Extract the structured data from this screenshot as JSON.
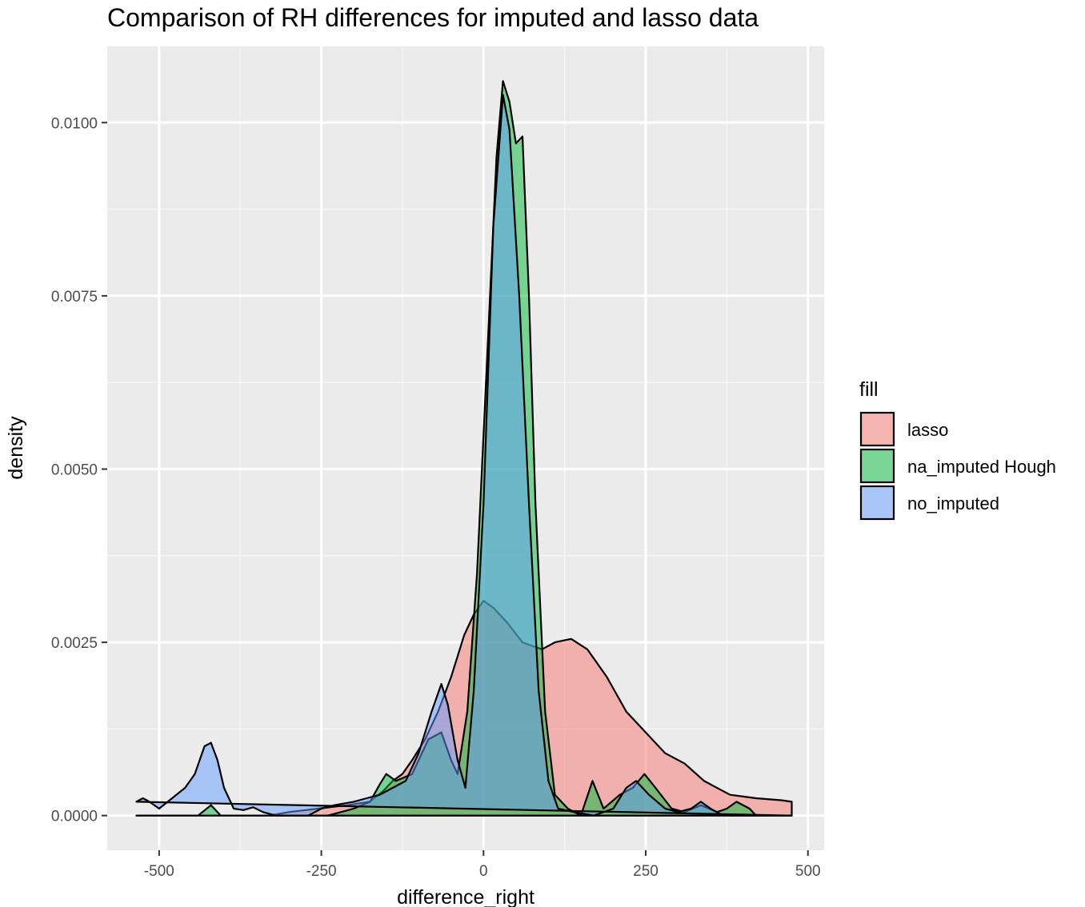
{
  "chart_data": {
    "type": "area",
    "title": "Comparison of RH differences for imputed and lasso data",
    "xlabel": "difference_right",
    "ylabel": "density",
    "xlim": [
      -580,
      525
    ],
    "ylim": [
      -0.0005,
      0.0111
    ],
    "x_ticks": [
      -500,
      -250,
      0,
      250,
      500
    ],
    "x_tick_labels": [
      "-500",
      "-250",
      "0",
      "250",
      "500"
    ],
    "y_ticks": [
      0.0,
      0.0025,
      0.005,
      0.0075,
      0.01
    ],
    "y_tick_labels": [
      "0.0000",
      "0.0025",
      "0.0050",
      "0.0075",
      "0.0100"
    ],
    "grid": true,
    "legend": {
      "title": "fill",
      "placement": "right"
    },
    "series": [
      {
        "name": "lasso",
        "color": "#F8766D",
        "points": [
          [
            -535,
            0
          ],
          [
            -330,
            0
          ],
          [
            -300,
            5e-05
          ],
          [
            -255,
            0.0001
          ],
          [
            -210,
            0.00015
          ],
          [
            -175,
            0.0002
          ],
          [
            -155,
            0.00035
          ],
          [
            -140,
            0.0005
          ],
          [
            -125,
            0.0006
          ],
          [
            -110,
            0.0008
          ],
          [
            -90,
            0.0011
          ],
          [
            -70,
            0.0015
          ],
          [
            -50,
            0.002
          ],
          [
            -30,
            0.0026
          ],
          [
            -15,
            0.0029
          ],
          [
            0,
            0.0031
          ],
          [
            15,
            0.003
          ],
          [
            35,
            0.0028
          ],
          [
            60,
            0.0025
          ],
          [
            90,
            0.0024
          ],
          [
            110,
            0.0025
          ],
          [
            135,
            0.00255
          ],
          [
            160,
            0.0024
          ],
          [
            190,
            0.002
          ],
          [
            220,
            0.0015
          ],
          [
            250,
            0.0012
          ],
          [
            280,
            0.0009
          ],
          [
            310,
            0.00075
          ],
          [
            340,
            0.0005
          ],
          [
            380,
            0.0003
          ],
          [
            420,
            0.00025
          ],
          [
            460,
            0.00022
          ],
          [
            475,
            0.0002
          ],
          [
            475,
            0
          ]
        ]
      },
      {
        "name": "na_imputed Hough",
        "color": "#00BA38",
        "points": [
          [
            -535,
            0
          ],
          [
            -440,
            0
          ],
          [
            -420,
            0.00015
          ],
          [
            -405,
            0
          ],
          [
            -240,
            0
          ],
          [
            -200,
            0.0001
          ],
          [
            -175,
            0.0002
          ],
          [
            -160,
            0.00045
          ],
          [
            -150,
            0.0006
          ],
          [
            -135,
            0.0005
          ],
          [
            -110,
            0.0006
          ],
          [
            -85,
            0.0011
          ],
          [
            -65,
            0.0012
          ],
          [
            -50,
            0.0008
          ],
          [
            -40,
            0.0006
          ],
          [
            -25,
            0.0015
          ],
          [
            -10,
            0.0035
          ],
          [
            5,
            0.0065
          ],
          [
            20,
            0.0095
          ],
          [
            30,
            0.0106
          ],
          [
            40,
            0.0103
          ],
          [
            50,
            0.0097
          ],
          [
            60,
            0.0098
          ],
          [
            70,
            0.0075
          ],
          [
            80,
            0.0045
          ],
          [
            95,
            0.0015
          ],
          [
            110,
            0.0003
          ],
          [
            130,
            0.0001
          ],
          [
            150,
            0
          ],
          [
            168,
            0.0005
          ],
          [
            185,
            0.0001
          ],
          [
            210,
            0.0003
          ],
          [
            230,
            0.0004
          ],
          [
            248,
            0.0006
          ],
          [
            265,
            0.0004
          ],
          [
            290,
            0.0001
          ],
          [
            310,
            5e-05
          ],
          [
            335,
            0.00015
          ],
          [
            360,
            5e-05
          ],
          [
            375,
            0.0001
          ],
          [
            390,
            0.0002
          ],
          [
            410,
            0.0001
          ],
          [
            420,
            0
          ],
          [
            475,
            0
          ]
        ]
      },
      {
        "name": "no_imputed",
        "color": "#619CFF",
        "points": [
          [
            -535,
            0.0002
          ],
          [
            -525,
            0.00025
          ],
          [
            -515,
            0.0002
          ],
          [
            -500,
            0.0001
          ],
          [
            -480,
            0.00025
          ],
          [
            -460,
            0.0004
          ],
          [
            -445,
            0.0006
          ],
          [
            -430,
            0.001
          ],
          [
            -420,
            0.00105
          ],
          [
            -410,
            0.0008
          ],
          [
            -400,
            0.0004
          ],
          [
            -385,
            0.0001
          ],
          [
            -370,
            8e-05
          ],
          [
            -355,
            0.00012
          ],
          [
            -340,
            5e-05
          ],
          [
            -320,
            0
          ],
          [
            -300,
            0
          ],
          [
            -270,
            0
          ],
          [
            -250,
            0.0001
          ],
          [
            -230,
            0.00015
          ],
          [
            -200,
            0.0002
          ],
          [
            -180,
            0.00025
          ],
          [
            -160,
            0.0003
          ],
          [
            -140,
            0.0004
          ],
          [
            -120,
            0.0005
          ],
          [
            -100,
            0.0009
          ],
          [
            -80,
            0.0015
          ],
          [
            -65,
            0.0019
          ],
          [
            -55,
            0.0016
          ],
          [
            -40,
            0.0008
          ],
          [
            -28,
            0.0004
          ],
          [
            -15,
            0.0018
          ],
          [
            0,
            0.0045
          ],
          [
            15,
            0.0085
          ],
          [
            30,
            0.0104
          ],
          [
            40,
            0.0099
          ],
          [
            55,
            0.0075
          ],
          [
            70,
            0.0045
          ],
          [
            85,
            0.0018
          ],
          [
            100,
            0.0005
          ],
          [
            115,
            0.0001
          ],
          [
            140,
            5e-05
          ],
          [
            170,
            0
          ],
          [
            200,
            0.0001
          ],
          [
            220,
            0.0004
          ],
          [
            235,
            0.0005
          ],
          [
            255,
            0.0003
          ],
          [
            280,
            0.0001
          ],
          [
            300,
            5e-05
          ],
          [
            320,
            0.0001
          ],
          [
            335,
            0.0002
          ],
          [
            350,
            0.0001
          ],
          [
            365,
            2e-05
          ],
          [
            380,
            0
          ],
          [
            475,
            0
          ]
        ]
      }
    ]
  }
}
